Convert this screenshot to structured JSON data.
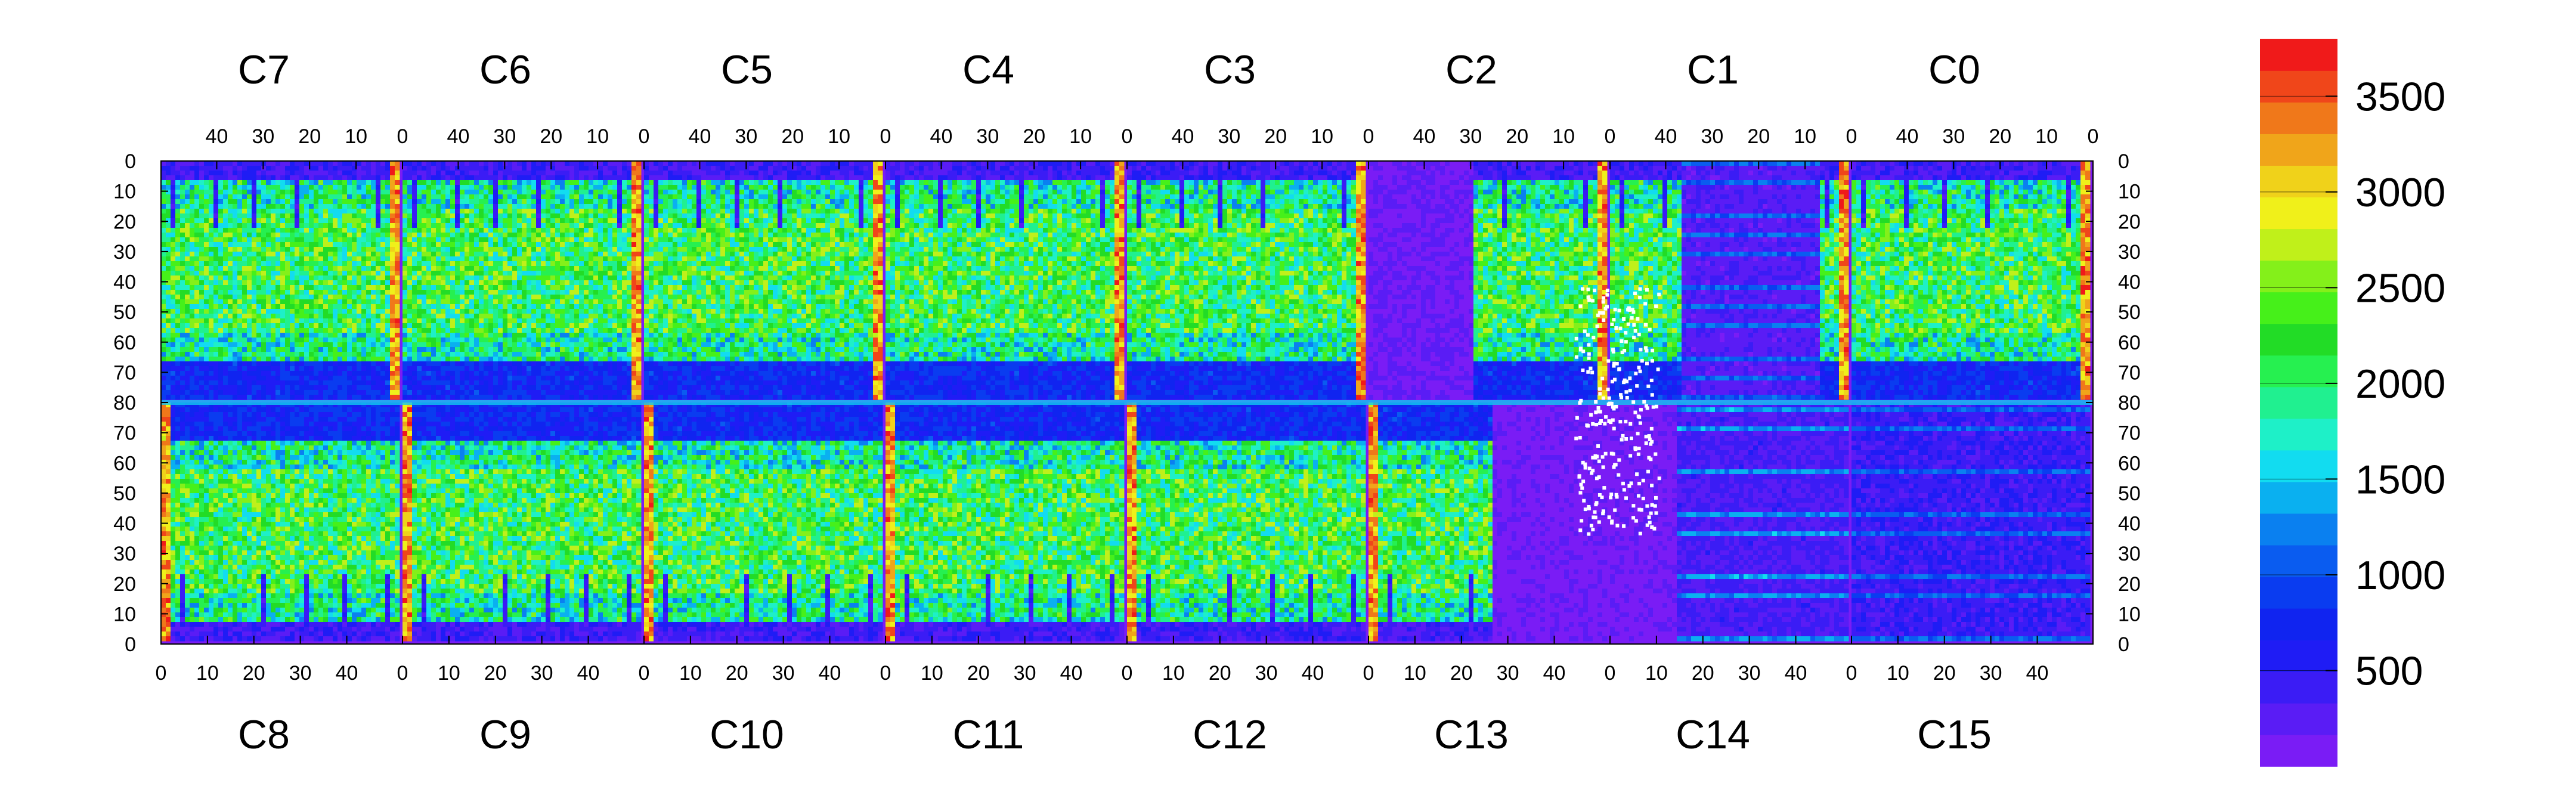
{
  "chart_data": {
    "type": "heatmap",
    "title": "",
    "xlabel": "",
    "ylabel": "",
    "top_chips": [
      "C7",
      "C6",
      "C5",
      "C4",
      "C3",
      "C2",
      "C1",
      "C0"
    ],
    "bottom_chips": [
      "C8",
      "C9",
      "C10",
      "C11",
      "C12",
      "C13",
      "C14",
      "C15"
    ],
    "top_tick_labels": [
      "40",
      "30",
      "20",
      "10",
      "0"
    ],
    "bottom_tick_labels": [
      "0",
      "10",
      "20",
      "30",
      "40"
    ],
    "left_tick_labels": [
      "0",
      "10",
      "20",
      "30",
      "40",
      "50",
      "60",
      "70",
      "80",
      "70",
      "60",
      "50",
      "40",
      "30",
      "20",
      "10",
      "0"
    ],
    "right_tick_labels": [
      "0",
      "10",
      "20",
      "30",
      "40",
      "50",
      "60",
      "70",
      "80",
      "70",
      "60",
      "50",
      "40",
      "30",
      "20",
      "10",
      "0"
    ],
    "chip_columns": 52,
    "chip_rows": 80,
    "z_range": [
      0,
      3800
    ],
    "colorbar_ticks": [
      500,
      1000,
      1500,
      2000,
      2500,
      3000,
      3500
    ],
    "colorbar_tick_labels": [
      "500",
      "1000",
      "1500",
      "2000",
      "2500",
      "3000",
      "3500"
    ],
    "palette": [
      "#7a1cf5",
      "#5a1cf5",
      "#3b1cf5",
      "#1f1cf5",
      "#1024f0",
      "#0a3cf0",
      "#0a5cf0",
      "#0a80f0",
      "#0ab0f0",
      "#12dcf0",
      "#1ef0c8",
      "#20f090",
      "#26f050",
      "#22dc26",
      "#46f01a",
      "#84f01a",
      "#c0f01a",
      "#f0f01a",
      "#f0d21a",
      "#f0a51a",
      "#f0781a",
      "#f0461a",
      "#f01a1a"
    ],
    "notes": "Pixel-occupancy hitmap of 16 pixel chips (C0-C15) arranged in two rows; values are hit counts per pixel"
  }
}
